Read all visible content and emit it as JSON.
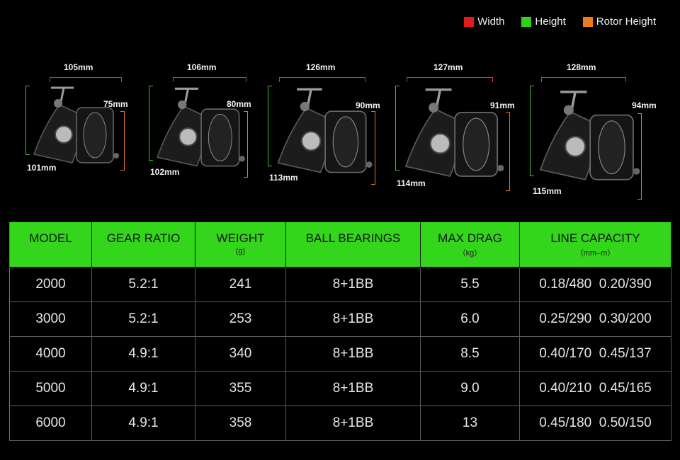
{
  "legend": [
    {
      "label": "Width",
      "color": "#e01b1b"
    },
    {
      "label": "Height",
      "color": "#2fd21b"
    },
    {
      "label": "Rotor Height",
      "color": "#f07a1a"
    }
  ],
  "reels": [
    {
      "width": "105mm",
      "height": "101mm",
      "rotor_height": "75mm"
    },
    {
      "width": "106mm",
      "height": "102mm",
      "rotor_height": "80mm"
    },
    {
      "width": "126mm",
      "height": "113mm",
      "rotor_height": "90mm"
    },
    {
      "width": "127mm",
      "height": "114mm",
      "rotor_height": "91mm"
    },
    {
      "width": "128mm",
      "height": "115mm",
      "rotor_height": "94mm"
    }
  ],
  "table": {
    "header_color": "#33d61a",
    "headers": [
      {
        "label": "MODEL",
        "unit": ""
      },
      {
        "label": "GEAR RATIO",
        "unit": ""
      },
      {
        "label": "WEIGHT",
        "unit": "(g)"
      },
      {
        "label": "BALL BEARINGS",
        "unit": ""
      },
      {
        "label": "MAX DRAG",
        "unit": "（kg）"
      },
      {
        "label": "LINE CAPACITY",
        "unit": "（mm–m）"
      }
    ],
    "rows": [
      [
        "2000",
        "5.2:1",
        "241",
        "8+1BB",
        "5.5",
        "0.18/480  0.20/390"
      ],
      [
        "3000",
        "5.2:1",
        "253",
        "8+1BB",
        "6.0",
        "0.25/290  0.30/200"
      ],
      [
        "4000",
        "4.9:1",
        "340",
        "8+1BB",
        "8.5",
        "0.40/170  0.45/137"
      ],
      [
        "5000",
        "4.9:1",
        "355",
        "8+1BB",
        "9.0",
        "0.40/210  0.45/165"
      ],
      [
        "6000",
        "4.9:1",
        "358",
        "8+1BB",
        "13",
        "0.45/180  0.50/150"
      ]
    ]
  }
}
